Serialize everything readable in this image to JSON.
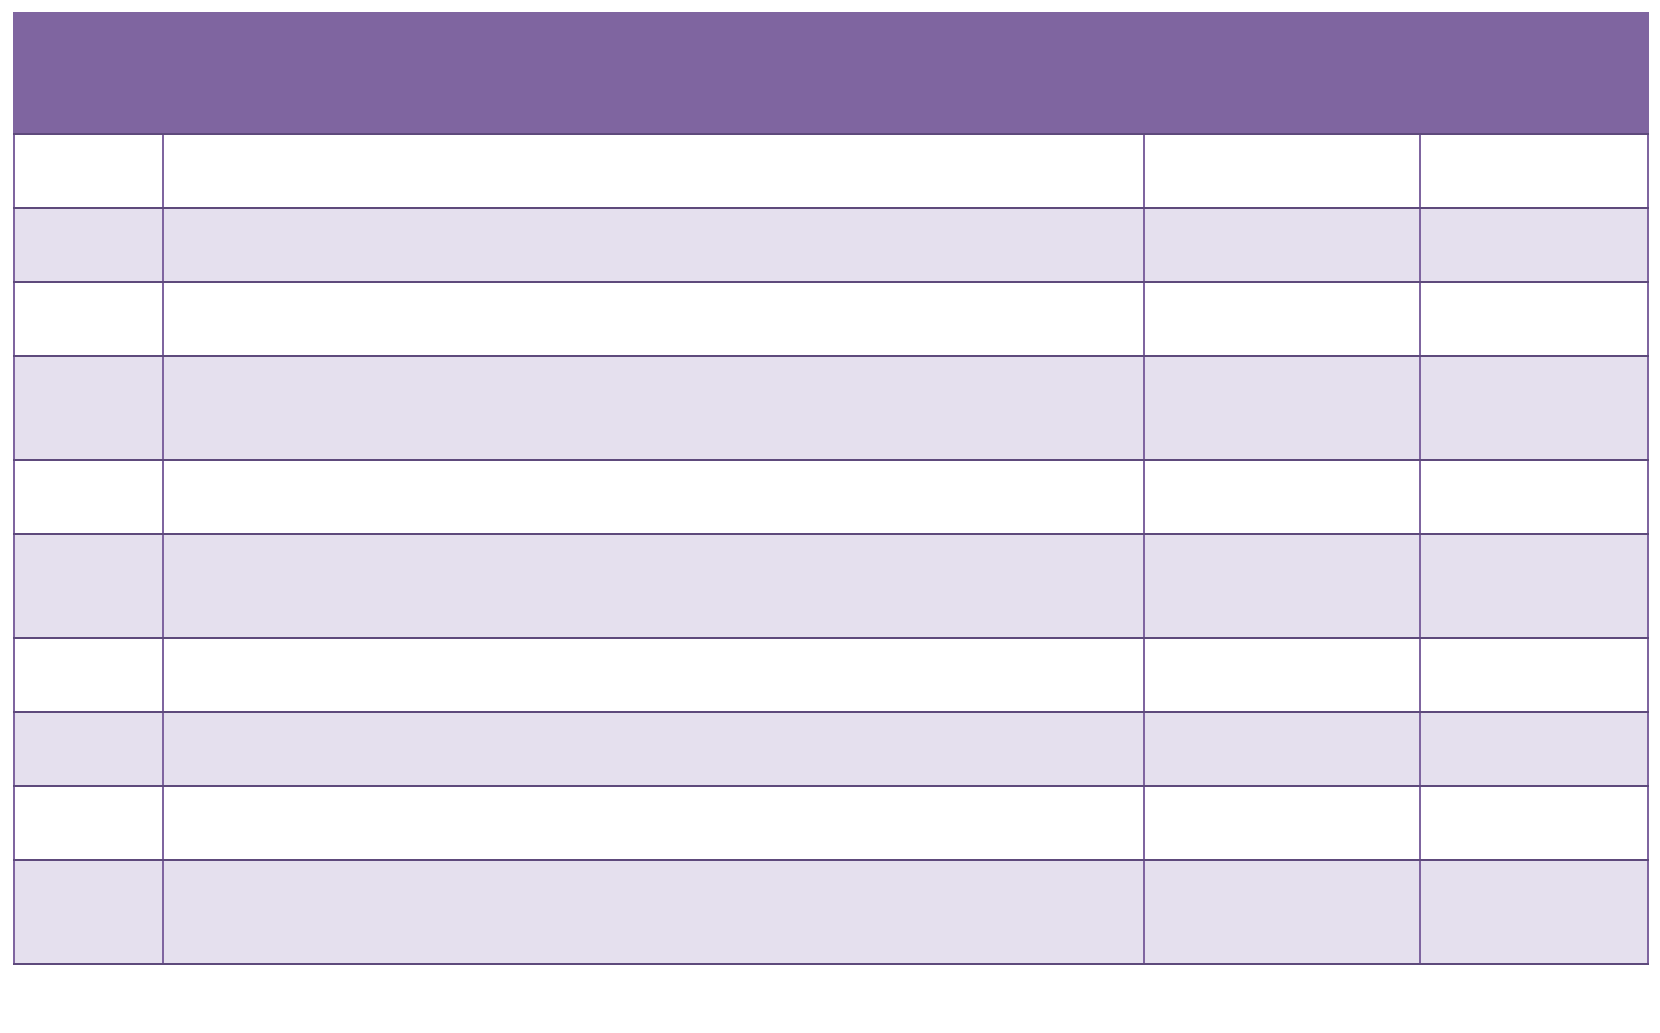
{
  "colors": {
    "header": "#7f65a0",
    "border": "#7f65a0",
    "row_alt": "#e5e0ee",
    "row_plain": "#ffffff"
  },
  "table": {
    "header": "",
    "rows": [
      [
        "",
        "",
        "",
        ""
      ],
      [
        "",
        "",
        "",
        ""
      ],
      [
        "",
        "",
        "",
        ""
      ],
      [
        "",
        "",
        "",
        ""
      ],
      [
        "",
        "",
        "",
        ""
      ],
      [
        "",
        "",
        "",
        ""
      ],
      [
        "",
        "",
        "",
        ""
      ],
      [
        "",
        "",
        "",
        ""
      ],
      [
        "",
        "",
        "",
        ""
      ],
      [
        "",
        "",
        "",
        ""
      ]
    ]
  }
}
